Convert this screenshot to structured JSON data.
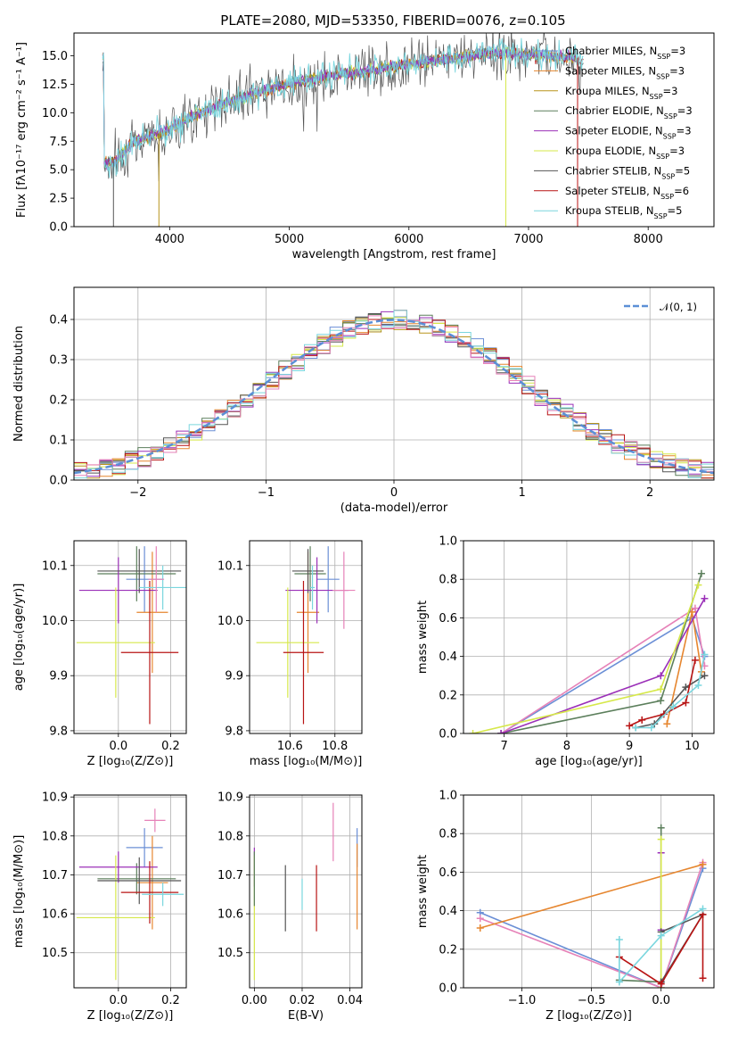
{
  "figure": {
    "title": "PLATE=2080, MJD=53350, FIBERID=0076, z=0.105"
  },
  "colors": {
    "Chabrier MILES": "#6b8fd6",
    "Salpeter MILES": "#e6862f",
    "Kroupa MILES": "#b8941c",
    "Chabrier ELODIE": "#5c7f5c",
    "Salpeter ELODIE": "#9b30b8",
    "Kroupa ELODIE": "#d6e84a",
    "Chabrier STELIB": "#555555",
    "Salpeter STELIB": "#b81414",
    "Kroupa STELIB": "#7ad6de",
    "pink": "#e682b8",
    "gaussian": "#5b8fd6"
  },
  "chart_data": [
    {
      "id": "spectrum",
      "type": "line",
      "xlabel": "wavelength [Angstrom, rest frame]",
      "ylabel": "Flux [fλ10⁻¹⁷ erg cm⁻² s⁻¹ A⁻¹]",
      "xlim": [
        3200,
        8550
      ],
      "ylim": [
        0,
        17
      ],
      "xticks": [
        4000,
        5000,
        6000,
        7000,
        8000
      ],
      "yticks": [
        0.0,
        2.5,
        5.0,
        7.5,
        10.0,
        12.5,
        15.0
      ],
      "legend_position": "right",
      "legend": [
        {
          "label": "Chabrier MILES, N",
          "sub": "SSP",
          "tail": "=3",
          "color": "Chabrier MILES"
        },
        {
          "label": "Salpeter MILES, N",
          "sub": "SSP",
          "tail": "=3",
          "color": "Salpeter MILES"
        },
        {
          "label": "Kroupa MILES, N",
          "sub": "SSP",
          "tail": "=3",
          "color": "Kroupa MILES"
        },
        {
          "label": "Chabrier ELODIE, N",
          "sub": "SSP",
          "tail": "=3",
          "color": "Chabrier ELODIE"
        },
        {
          "label": "Salpeter ELODIE, N",
          "sub": "SSP",
          "tail": "=3",
          "color": "Salpeter ELODIE"
        },
        {
          "label": "Kroupa ELODIE, N",
          "sub": "SSP",
          "tail": "=3",
          "color": "Kroupa ELODIE"
        },
        {
          "label": "Chabrier STELIB, N",
          "sub": "SSP",
          "tail": "=5",
          "color": "Chabrier STELIB"
        },
        {
          "label": "Salpeter STELIB, N",
          "sub": "SSP",
          "tail": "=6",
          "color": "Salpeter STELIB"
        },
        {
          "label": "Kroupa STELIB, N",
          "sub": "SSP",
          "tail": "=5",
          "color": "Kroupa STELIB"
        }
      ],
      "continuum": [
        [
          3450,
          5.5
        ],
        [
          3550,
          5.8
        ],
        [
          3700,
          7.5
        ],
        [
          3850,
          8.0
        ],
        [
          4000,
          8.5
        ],
        [
          4200,
          9.8
        ],
        [
          4500,
          11.0
        ],
        [
          4800,
          12.0
        ],
        [
          5000,
          12.5
        ],
        [
          5300,
          13.2
        ],
        [
          5600,
          13.6
        ],
        [
          6000,
          14.3
        ],
        [
          6400,
          14.8
        ],
        [
          6700,
          15.3
        ],
        [
          7000,
          15.1
        ],
        [
          7300,
          14.9
        ],
        [
          7450,
          14.8
        ]
      ]
    },
    {
      "id": "residuals",
      "type": "histogram",
      "xlabel": "(data-model)/error",
      "ylabel": "Normed distribution",
      "xlim": [
        -2.5,
        2.5
      ],
      "ylim": [
        0,
        0.48
      ],
      "xticks": [
        -2,
        -1,
        0,
        1,
        2
      ],
      "yticks": [
        0.0,
        0.1,
        0.2,
        0.3,
        0.4
      ],
      "legend_position": "upper right",
      "legend": [
        {
          "label": "𝒩(0, 1)",
          "style": "dashed",
          "color": "gaussian"
        }
      ],
      "bin_width": 0.1
    },
    {
      "id": "age_vs_Z",
      "type": "errorbar",
      "xlabel": "Z [log₁₀(Z/Z⊙)]",
      "ylabel": "age  [log₁₀(age/yr)]",
      "xlim": [
        -0.17,
        0.26
      ],
      "ylim": [
        9.795,
        10.145
      ],
      "xticks": [
        0.0,
        0.2
      ],
      "yticks": [
        9.8,
        9.9,
        10.0,
        10.1
      ],
      "points": [
        {
          "x": 0.1,
          "y": 10.075,
          "xerr": 0.07,
          "yerr": 0.06,
          "color": "Chabrier MILES"
        },
        {
          "x": 0.13,
          "y": 10.015,
          "xerr": 0.06,
          "yerr": 0.11,
          "color": "Salpeter MILES"
        },
        {
          "x": 0.07,
          "y": 10.085,
          "xerr": 0.15,
          "yerr": 0.05,
          "color": "Chabrier ELODIE"
        },
        {
          "x": 0.0,
          "y": 10.055,
          "xerr": 0.15,
          "yerr": 0.06,
          "color": "Salpeter ELODIE"
        },
        {
          "x": -0.01,
          "y": 9.96,
          "xerr": 0.15,
          "yerr": 0.1,
          "color": "Kroupa ELODIE"
        },
        {
          "x": 0.08,
          "y": 10.09,
          "xerr": 0.16,
          "yerr": 0.04,
          "color": "Chabrier STELIB"
        },
        {
          "x": 0.12,
          "y": 9.942,
          "xerr": 0.11,
          "yerr": 0.13,
          "color": "Salpeter STELIB"
        },
        {
          "x": 0.17,
          "y": 10.06,
          "xerr": 0.09,
          "yerr": 0.04,
          "color": "Kroupa STELIB"
        },
        {
          "x": 0.145,
          "y": 10.075,
          "xerr": 0.03,
          "yerr": 0.06,
          "color": "pink"
        }
      ]
    },
    {
      "id": "age_vs_mass",
      "type": "errorbar",
      "xlabel": "mass [log₁₀(M/M⊙)]",
      "ylabel": "",
      "xlim": [
        10.42,
        10.92
      ],
      "ylim": [
        9.795,
        10.145
      ],
      "xticks": [
        10.6,
        10.8
      ],
      "yticks": [
        9.8,
        9.9,
        10.0,
        10.1
      ],
      "points": [
        {
          "x": 10.77,
          "y": 10.075,
          "xerr": 0.05,
          "yerr": 0.06,
          "color": "Chabrier MILES"
        },
        {
          "x": 10.68,
          "y": 10.015,
          "xerr": 0.05,
          "yerr": 0.11,
          "color": "Salpeter MILES"
        },
        {
          "x": 10.69,
          "y": 10.085,
          "xerr": 0.07,
          "yerr": 0.05,
          "color": "Chabrier ELODIE"
        },
        {
          "x": 10.72,
          "y": 10.055,
          "xerr": 0.14,
          "yerr": 0.06,
          "color": "Salpeter ELODIE"
        },
        {
          "x": 10.59,
          "y": 9.96,
          "xerr": 0.14,
          "yerr": 0.1,
          "color": "Kroupa ELODIE"
        },
        {
          "x": 10.68,
          "y": 10.09,
          "xerr": 0.07,
          "yerr": 0.04,
          "color": "Chabrier STELIB"
        },
        {
          "x": 10.66,
          "y": 9.942,
          "xerr": 0.09,
          "yerr": 0.13,
          "color": "Salpeter STELIB"
        },
        {
          "x": 10.7,
          "y": 10.06,
          "xerr": 0.01,
          "yerr": 0.04,
          "color": "Kroupa STELIB"
        },
        {
          "x": 10.84,
          "y": 10.055,
          "xerr": 0.05,
          "yerr": 0.07,
          "color": "pink"
        }
      ]
    },
    {
      "id": "mass_weight_vs_age",
      "type": "line",
      "xlabel": "age  [log₁₀(age/yr)]",
      "ylabel": "mass weight",
      "xlim": [
        6.35,
        10.35
      ],
      "ylim": [
        0,
        1.0
      ],
      "xticks": [
        7,
        8,
        9,
        10
      ],
      "yticks": [
        0.0,
        0.2,
        0.4,
        0.6,
        0.8,
        1.0
      ],
      "series": [
        {
          "color": "Chabrier MILES",
          "x": [
            6.95,
            10.0,
            10.2
          ],
          "y": [
            0.0,
            0.6,
            0.4
          ]
        },
        {
          "color": "pink",
          "x": [
            6.95,
            10.05,
            10.2
          ],
          "y": [
            0.0,
            0.65,
            0.35
          ]
        },
        {
          "color": "Salpeter MILES",
          "x": [
            9.6,
            10.0,
            10.15
          ],
          "y": [
            0.05,
            0.63,
            0.32
          ]
        },
        {
          "color": "Chabrier ELODIE",
          "x": [
            6.95,
            9.5,
            10.15
          ],
          "y": [
            0.0,
            0.17,
            0.83
          ]
        },
        {
          "color": "Salpeter ELODIE",
          "x": [
            6.95,
            9.5,
            10.2
          ],
          "y": [
            0.0,
            0.3,
            0.7
          ]
        },
        {
          "color": "Kroupa ELODIE",
          "x": [
            6.5,
            9.5,
            10.1
          ],
          "y": [
            0.0,
            0.23,
            0.77
          ]
        },
        {
          "color": "Chabrier STELIB",
          "x": [
            9.1,
            9.4,
            9.9,
            10.2
          ],
          "y": [
            0.03,
            0.05,
            0.24,
            0.3
          ]
        },
        {
          "color": "Salpeter STELIB",
          "x": [
            9.0,
            9.2,
            9.55,
            9.9,
            10.05
          ],
          "y": [
            0.04,
            0.07,
            0.1,
            0.16,
            0.38
          ]
        },
        {
          "color": "Kroupa STELIB",
          "x": [
            9.1,
            9.35,
            9.7,
            10.1,
            10.2
          ],
          "y": [
            0.03,
            0.03,
            0.14,
            0.25,
            0.41
          ]
        }
      ]
    },
    {
      "id": "mass_vs_Z",
      "type": "errorbar",
      "xlabel": "Z [log₁₀(Z/Z⊙)]",
      "ylabel": "mass [log₁₀(M/M⊙)]",
      "xlim": [
        -0.17,
        0.26
      ],
      "ylim": [
        10.41,
        10.905
      ],
      "xticks": [
        0.0,
        0.2
      ],
      "yticks": [
        10.5,
        10.6,
        10.7,
        10.8,
        10.9
      ],
      "points": [
        {
          "x": 0.1,
          "y": 10.77,
          "xerr": 0.07,
          "yerr": 0.05,
          "color": "Chabrier MILES"
        },
        {
          "x": 0.13,
          "y": 10.68,
          "xerr": 0.06,
          "yerr": 0.12,
          "color": "Salpeter MILES"
        },
        {
          "x": 0.07,
          "y": 10.69,
          "xerr": 0.15,
          "yerr": 0.04,
          "color": "Chabrier ELODIE"
        },
        {
          "x": 0.0,
          "y": 10.72,
          "xerr": 0.15,
          "yerr": 0.04,
          "color": "Salpeter ELODIE"
        },
        {
          "x": -0.01,
          "y": 10.59,
          "xerr": 0.15,
          "yerr": 0.16,
          "color": "Kroupa ELODIE"
        },
        {
          "x": 0.08,
          "y": 10.685,
          "xerr": 0.16,
          "yerr": 0.06,
          "color": "Chabrier STELIB"
        },
        {
          "x": 0.12,
          "y": 10.655,
          "xerr": 0.11,
          "yerr": 0.08,
          "color": "Salpeter STELIB"
        },
        {
          "x": 0.17,
          "y": 10.65,
          "xerr": 0.08,
          "yerr": 0.03,
          "color": "Kroupa STELIB"
        },
        {
          "x": 0.14,
          "y": 10.84,
          "xerr": 0.04,
          "yerr": 0.03,
          "color": "pink"
        }
      ]
    },
    {
      "id": "mass_vs_EBV",
      "type": "errorbar",
      "xlabel": "E(B-V)",
      "ylabel": "",
      "xlim": [
        -0.002,
        0.045
      ],
      "ylim": [
        10.41,
        10.905
      ],
      "xticks": [
        0.0,
        0.02,
        0.04
      ],
      "yticks": [
        10.5,
        10.6,
        10.7,
        10.8,
        10.9
      ],
      "points": [
        {
          "x": 0.043,
          "y": 10.77,
          "xerr": 0,
          "yerr": 0.05,
          "color": "Chabrier MILES"
        },
        {
          "x": 0.043,
          "y": 10.67,
          "xerr": 0,
          "yerr": 0.11,
          "color": "Salpeter MILES"
        },
        {
          "x": 0.0,
          "y": 10.72,
          "xerr": 0,
          "yerr": 0.05,
          "color": "Salpeter ELODIE"
        },
        {
          "x": 0.0,
          "y": 10.59,
          "xerr": 0,
          "yerr": 0.16,
          "color": "Kroupa ELODIE"
        },
        {
          "x": 0.0,
          "y": 10.69,
          "xerr": 0,
          "yerr": 0.07,
          "color": "Chabrier ELODIE"
        },
        {
          "x": 0.013,
          "y": 10.64,
          "xerr": 0,
          "yerr": 0.085,
          "color": "Chabrier STELIB"
        },
        {
          "x": 0.026,
          "y": 10.64,
          "xerr": 0,
          "yerr": 0.085,
          "color": "Salpeter STELIB"
        },
        {
          "x": 0.02,
          "y": 10.65,
          "xerr": 0,
          "yerr": 0.04,
          "color": "Kroupa STELIB"
        },
        {
          "x": 0.033,
          "y": 10.81,
          "xerr": 0,
          "yerr": 0.075,
          "color": "pink"
        }
      ]
    },
    {
      "id": "mass_weight_vs_Z",
      "type": "line",
      "xlabel": "Z [log₁₀(Z/Z⊙)]",
      "ylabel": "mass weight",
      "xlim": [
        -1.42,
        0.38
      ],
      "ylim": [
        0,
        1.0
      ],
      "xticks": [
        -1.0,
        -0.5,
        0.0
      ],
      "yticks": [
        0.0,
        0.2,
        0.4,
        0.6,
        0.8,
        1.0
      ],
      "series": [
        {
          "color": "Chabrier MILES",
          "x": [
            -1.3,
            0.0,
            0.3
          ],
          "y": [
            0.39,
            0.0,
            0.62
          ]
        },
        {
          "color": "pink",
          "x": [
            -1.3,
            0.0,
            0.3
          ],
          "y": [
            0.36,
            0.0,
            0.65
          ]
        },
        {
          "color": "Salpeter MILES",
          "x": [
            -1.3,
            0.3
          ],
          "y": [
            0.31,
            0.64
          ]
        },
        {
          "color": "Chabrier ELODIE",
          "x": [
            -0.3,
            0.0,
            0.0
          ],
          "y": [
            0.04,
            0.03,
            0.83
          ]
        },
        {
          "color": "Salpeter ELODIE",
          "x": [
            0.0,
            0.0
          ],
          "y": [
            0.3,
            0.7
          ]
        },
        {
          "color": "Kroupa ELODIE",
          "x": [
            0.0,
            0.0
          ],
          "y": [
            0.0,
            0.77
          ]
        },
        {
          "color": "Chabrier STELIB",
          "x": [
            0.0,
            0.3,
            0.0
          ],
          "y": [
            0.29,
            0.38,
            0.03
          ]
        },
        {
          "color": "Salpeter STELIB",
          "x": [
            -0.3,
            0.0,
            0.3,
            0.3
          ],
          "y": [
            0.16,
            0.02,
            0.38,
            0.05
          ]
        },
        {
          "color": "Kroupa STELIB",
          "x": [
            -0.3,
            -0.3,
            0.0,
            0.3
          ],
          "y": [
            0.25,
            0.03,
            0.27,
            0.41
          ]
        }
      ]
    }
  ]
}
